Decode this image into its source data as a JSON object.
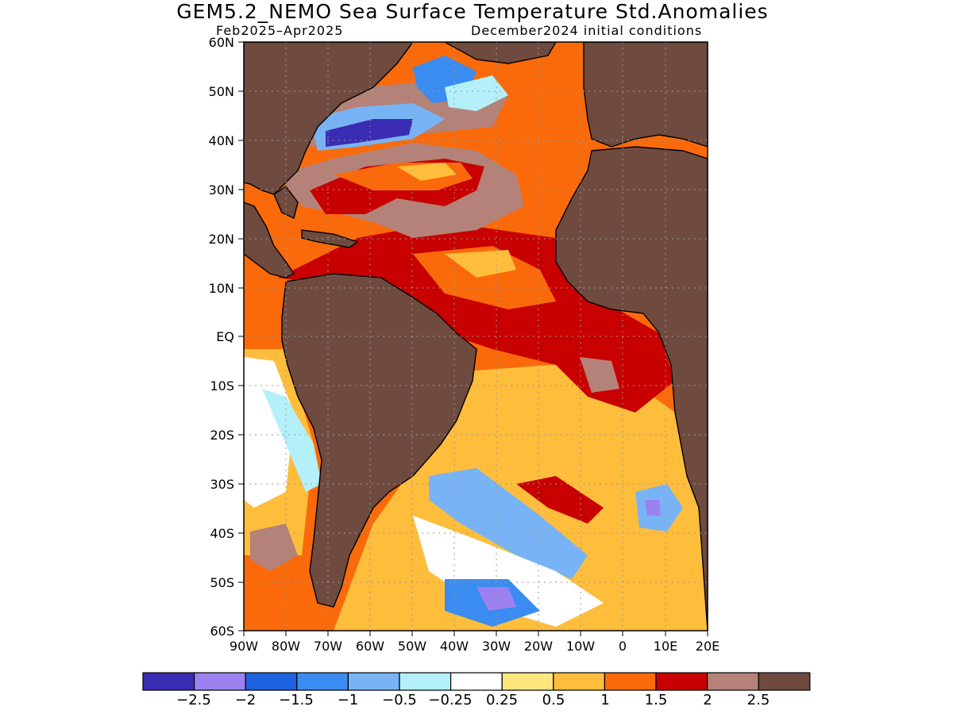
{
  "title": "GEM5.2_NEMO Sea Surface Temperature Std.Anomalies",
  "subtitle_left": "Feb2025–Apr2025",
  "subtitle_right": "December2024 initial conditions",
  "map": {
    "lat_range": [
      -60,
      60
    ],
    "lon_range": [
      -90,
      20
    ],
    "lat_ticks": [
      "60N",
      "50N",
      "40N",
      "30N",
      "20N",
      "10N",
      "EQ",
      "10S",
      "20S",
      "30S",
      "40S",
      "50S",
      "60S"
    ],
    "lon_ticks": [
      "90W",
      "80W",
      "70W",
      "60W",
      "50W",
      "40W",
      "30W",
      "20W",
      "10W",
      "0",
      "10E",
      "20E"
    ],
    "grid": "dotted",
    "land_color": "#6f4a3f"
  },
  "colorbar": {
    "colors": [
      "#3b2cb4",
      "#9b82f0",
      "#1f62e0",
      "#3a8cf0",
      "#78b4f5",
      "#b4f0fa",
      "#ffffff",
      "#ffe67d",
      "#ffbd3c",
      "#fa6a0a",
      "#c80000",
      "#b48278",
      "#6f4a3f"
    ],
    "labels": [
      "−2.5",
      "−2",
      "−1.5",
      "−1",
      "−0.5",
      "−0.25",
      "0.25",
      "0.5",
      "1",
      "1.5",
      "2",
      "2.5"
    ]
  }
}
